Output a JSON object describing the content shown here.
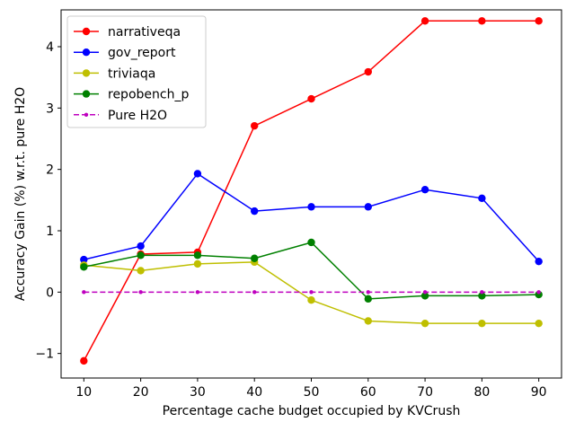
{
  "chart_data": {
    "type": "line",
    "title": "",
    "xlabel": "Percentage cache budget occupied by KVCrush",
    "ylabel": "Accuracy Gain (%) w.r.t. pure H2O",
    "x": [
      10,
      20,
      30,
      40,
      50,
      60,
      70,
      80,
      90
    ],
    "xlim": [
      6.0,
      94.0
    ],
    "ylim": [
      -1.4,
      4.6
    ],
    "xticks": [
      10,
      20,
      30,
      40,
      50,
      60,
      70,
      80,
      90
    ],
    "yticks": [
      -1,
      0,
      1,
      2,
      3,
      4
    ],
    "ytick_labels": [
      "−1",
      "0",
      "1",
      "2",
      "3",
      "4"
    ],
    "grid": false,
    "legend_position": "top-left",
    "series": [
      {
        "name": "narrativeqa",
        "color": "#ff0000",
        "style": "solid",
        "marker": "circle",
        "values": [
          -1.12,
          0.62,
          0.65,
          2.71,
          3.15,
          3.59,
          4.42,
          4.42,
          4.42
        ]
      },
      {
        "name": "gov_report",
        "color": "#0000ff",
        "style": "solid",
        "marker": "circle",
        "values": [
          0.53,
          0.75,
          1.93,
          1.32,
          1.39,
          1.39,
          1.67,
          1.53,
          0.5
        ]
      },
      {
        "name": "triviaqa",
        "color": "#bfbf00",
        "style": "solid",
        "marker": "circle",
        "values": [
          0.44,
          0.35,
          0.46,
          0.49,
          -0.13,
          -0.47,
          -0.51,
          -0.51,
          -0.51
        ]
      },
      {
        "name": "repobench_p",
        "color": "#008000",
        "style": "solid",
        "marker": "circle",
        "values": [
          0.41,
          0.6,
          0.6,
          0.55,
          0.81,
          -0.11,
          -0.06,
          -0.06,
          -0.04
        ]
      },
      {
        "name": "Pure H2O",
        "color": "#bf00bf",
        "style": "dashed",
        "marker": "small-dot",
        "values": [
          0,
          0,
          0,
          0,
          0,
          0,
          0,
          0,
          0
        ]
      }
    ]
  }
}
